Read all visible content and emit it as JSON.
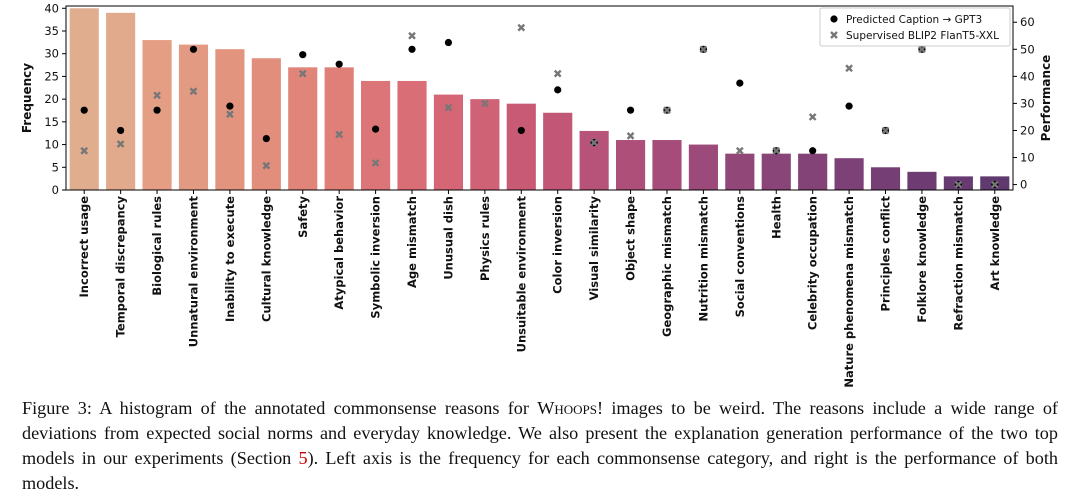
{
  "chart_data": {
    "type": "bar",
    "ylabel": "Frequency",
    "y2label": "Performance",
    "ylim": [
      0,
      40.5
    ],
    "y2lim": [
      -2,
      66
    ],
    "yticks": [
      0,
      5,
      10,
      15,
      20,
      25,
      30,
      35,
      40
    ],
    "y2ticks": [
      0,
      10,
      20,
      30,
      40,
      50,
      60
    ],
    "legend_position": "top-right",
    "categories": [
      "Incorrect usage",
      "Temporal discrepancy",
      "Biological rules",
      "Unnatural environment",
      "Inability to execute",
      "Cultural knowledge",
      "Safety",
      "Atypical behavior",
      "Symbolic inversion",
      "Age mismatch",
      "Unusual dish",
      "Physics rules",
      "Unsuitable environment",
      "Color inversion",
      "Visual similarity",
      "Object shape",
      "Geographic mismatch",
      "Nutrition mismatch",
      "Social conventions",
      "Health",
      "Celebrity occupation",
      "Nature phenomena mismatch",
      "Principles conflict",
      "Folklore knowledge",
      "Refraction mismatch",
      "Art knowledge"
    ],
    "frequency": [
      40,
      39,
      33,
      32,
      31,
      29,
      27,
      27,
      24,
      24,
      21,
      20,
      19,
      17,
      13,
      11,
      11,
      10,
      8,
      8,
      8,
      7,
      5,
      4,
      3,
      3
    ],
    "bar_colors": [
      "#e0ad8f",
      "#e2aa8c",
      "#e39e84",
      "#e39a82",
      "#e3947f",
      "#e28e7d",
      "#e1857a",
      "#df7f78",
      "#dc7577",
      "#da6e76",
      "#d46675",
      "#cf6275",
      "#c85a75",
      "#c15676",
      "#b75378",
      "#ae4f79",
      "#a64c7a",
      "#9c4a7a",
      "#924779",
      "#8a4578",
      "#834377",
      "#7c4176",
      "#753f75",
      "#6e3c73",
      "#673b71",
      "#603a6f"
    ],
    "series": [
      {
        "name": "Predicted Caption → GPT3",
        "marker": "circle",
        "color": "#000000",
        "values": [
          27.5,
          20,
          27.5,
          50,
          29,
          17,
          48,
          44.5,
          20.5,
          50,
          52.5,
          null,
          20,
          35,
          15.5,
          27.5,
          27.5,
          50,
          37.5,
          12.5,
          12.5,
          29,
          20,
          50,
          0,
          0
        ]
      },
      {
        "name": "Supervised BLIP2 FlanT5-XXL",
        "marker": "x",
        "color": "#777777",
        "values": [
          12.5,
          15,
          33,
          34.5,
          26,
          7,
          41,
          18.5,
          8,
          55,
          28.5,
          30,
          58,
          41,
          15.5,
          18,
          27.5,
          50,
          12.5,
          12.5,
          25,
          43,
          20,
          50,
          0,
          0
        ]
      }
    ]
  },
  "caption": {
    "figure_label": "Figure 3:",
    "text_before": "A histogram of the annotated commonsense reasons for ",
    "dataset_name": "Whoops!",
    "text_mid": " images to be weird. The reasons include a wide range of deviations from expected social norms and everyday knowledge. We also present the explanation generation performance of the two top models in our experiments (Section ",
    "section_ref": "5",
    "text_after": "). Left axis is the frequency for each commonsense category, and right is the performance of both models."
  }
}
